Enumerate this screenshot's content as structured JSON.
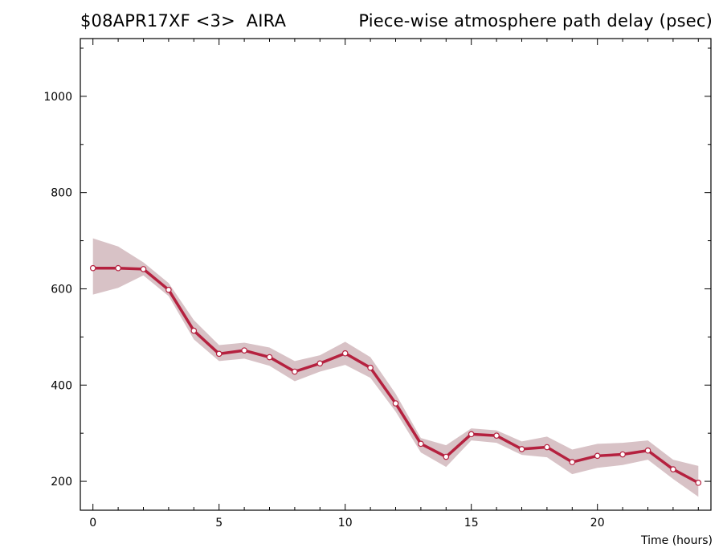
{
  "header": {
    "left_title": "$08APR17XF <3>  AIRA",
    "right_title": "Piece-wise atmosphere path delay (psec)"
  },
  "colors": {
    "line": "#b5213f",
    "band": "#d8c2c6",
    "marker_fill": "#ffffff"
  },
  "chart_data": {
    "type": "line",
    "title": "Piece-wise atmosphere path delay (psec)",
    "xlabel": "Time (hours)",
    "ylabel": "",
    "xlim": [
      -0.5,
      24.5
    ],
    "ylim": [
      140,
      1120
    ],
    "x_ticks": [
      0,
      5,
      10,
      15,
      20
    ],
    "y_ticks": [
      200,
      400,
      600,
      800,
      1000
    ],
    "grid": false,
    "series": [
      {
        "x": [
          0,
          1,
          2,
          3,
          4,
          5,
          6,
          7,
          8,
          9,
          10,
          11,
          12,
          13,
          14,
          15,
          16,
          17,
          18,
          19,
          20,
          21,
          22,
          23,
          24
        ],
        "values": [
          643,
          643,
          641,
          598,
          513,
          465,
          472,
          458,
          428,
          445,
          466,
          436,
          362,
          278,
          251,
          298,
          295,
          267,
          271,
          240,
          253,
          256,
          264,
          225,
          197
        ],
        "lower": [
          588,
          602,
          628,
          585,
          495,
          450,
          455,
          440,
          408,
          428,
          442,
          415,
          345,
          260,
          230,
          285,
          280,
          255,
          250,
          215,
          228,
          234,
          245,
          205,
          168
        ],
        "upper": [
          705,
          688,
          655,
          612,
          535,
          483,
          488,
          478,
          450,
          462,
          490,
          458,
          382,
          290,
          275,
          310,
          306,
          283,
          293,
          266,
          278,
          280,
          285,
          245,
          232
        ]
      }
    ]
  }
}
